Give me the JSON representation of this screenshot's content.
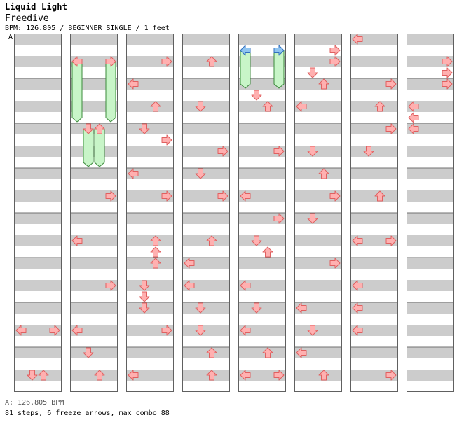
{
  "song": {
    "title": "Liquid Light",
    "artist": "Freedive",
    "info": "BPM: 126.805 / BEGINNER SINGLE / 1 feet",
    "marker": "A"
  },
  "footer": {
    "bpm_line": "A: 126.805 BPM",
    "stats_line": "81 steps, 6 freeze arrows, max combo 88"
  },
  "chart_data": {
    "type": "step-chart",
    "columns": 8,
    "rows_per_column": 32,
    "lanes": [
      "left",
      "down",
      "up",
      "right"
    ],
    "colors": {
      "note": "#ffb0b0",
      "note_stroke": "#e06060",
      "freeze": "#c8f5c8",
      "freeze_stroke": "#3a8a3a",
      "freeze_head": "#8fc4f0",
      "stripe": "#cccccc"
    },
    "notes": [
      {
        "c": 0,
        "r": 26,
        "l": 0
      },
      {
        "c": 0,
        "r": 26,
        "l": 3
      },
      {
        "c": 0,
        "r": 30,
        "l": 1
      },
      {
        "c": 0,
        "r": 30,
        "l": 2
      },
      {
        "c": 1,
        "r": 2,
        "l": 0
      },
      {
        "c": 1,
        "r": 2,
        "l": 3
      },
      {
        "c": 1,
        "r": 8,
        "l": 1
      },
      {
        "c": 1,
        "r": 8,
        "l": 2
      },
      {
        "c": 1,
        "r": 14,
        "l": 3
      },
      {
        "c": 1,
        "r": 18,
        "l": 0
      },
      {
        "c": 1,
        "r": 22,
        "l": 3
      },
      {
        "c": 1,
        "r": 26,
        "l": 0
      },
      {
        "c": 1,
        "r": 28,
        "l": 1
      },
      {
        "c": 1,
        "r": 30,
        "l": 2
      },
      {
        "c": 2,
        "r": 2,
        "l": 3
      },
      {
        "c": 2,
        "r": 4,
        "l": 0
      },
      {
        "c": 2,
        "r": 6,
        "l": 2
      },
      {
        "c": 2,
        "r": 8,
        "l": 1
      },
      {
        "c": 2,
        "r": 9,
        "l": 3
      },
      {
        "c": 2,
        "r": 12,
        "l": 0
      },
      {
        "c": 2,
        "r": 14,
        "l": 3
      },
      {
        "c": 2,
        "r": 18,
        "l": 2
      },
      {
        "c": 2,
        "r": 19,
        "l": 2
      },
      {
        "c": 2,
        "r": 20,
        "l": 2
      },
      {
        "c": 2,
        "r": 22,
        "l": 1
      },
      {
        "c": 2,
        "r": 23,
        "l": 1
      },
      {
        "c": 2,
        "r": 24,
        "l": 1
      },
      {
        "c": 2,
        "r": 26,
        "l": 3
      },
      {
        "c": 2,
        "r": 30,
        "l": 0
      },
      {
        "c": 3,
        "r": 2,
        "l": 2
      },
      {
        "c": 3,
        "r": 6,
        "l": 1
      },
      {
        "c": 3,
        "r": 10,
        "l": 3
      },
      {
        "c": 3,
        "r": 12,
        "l": 1
      },
      {
        "c": 3,
        "r": 14,
        "l": 3
      },
      {
        "c": 3,
        "r": 18,
        "l": 2
      },
      {
        "c": 3,
        "r": 20,
        "l": 0
      },
      {
        "c": 3,
        "r": 22,
        "l": 0
      },
      {
        "c": 3,
        "r": 24,
        "l": 1
      },
      {
        "c": 3,
        "r": 26,
        "l": 1
      },
      {
        "c": 3,
        "r": 28,
        "l": 2
      },
      {
        "c": 3,
        "r": 30,
        "l": 2
      },
      {
        "c": 4,
        "r": 1,
        "l": 0
      },
      {
        "c": 4,
        "r": 1,
        "l": 3
      },
      {
        "c": 4,
        "r": 5,
        "l": 1
      },
      {
        "c": 4,
        "r": 6,
        "l": 2
      },
      {
        "c": 4,
        "r": 10,
        "l": 3
      },
      {
        "c": 4,
        "r": 14,
        "l": 0
      },
      {
        "c": 4,
        "r": 16,
        "l": 3
      },
      {
        "c": 4,
        "r": 18,
        "l": 1
      },
      {
        "c": 4,
        "r": 19,
        "l": 2
      },
      {
        "c": 4,
        "r": 22,
        "l": 0
      },
      {
        "c": 4,
        "r": 24,
        "l": 1
      },
      {
        "c": 4,
        "r": 26,
        "l": 0
      },
      {
        "c": 4,
        "r": 28,
        "l": 2
      },
      {
        "c": 4,
        "r": 30,
        "l": 0
      },
      {
        "c": 4,
        "r": 30,
        "l": 3
      },
      {
        "c": 5,
        "r": 1,
        "l": 3
      },
      {
        "c": 5,
        "r": 2,
        "l": 3
      },
      {
        "c": 5,
        "r": 3,
        "l": 1
      },
      {
        "c": 5,
        "r": 4,
        "l": 2
      },
      {
        "c": 5,
        "r": 6,
        "l": 0
      },
      {
        "c": 5,
        "r": 10,
        "l": 1
      },
      {
        "c": 5,
        "r": 12,
        "l": 2
      },
      {
        "c": 5,
        "r": 14,
        "l": 3
      },
      {
        "c": 5,
        "r": 16,
        "l": 1
      },
      {
        "c": 5,
        "r": 20,
        "l": 3
      },
      {
        "c": 5,
        "r": 24,
        "l": 0
      },
      {
        "c": 5,
        "r": 26,
        "l": 1
      },
      {
        "c": 5,
        "r": 28,
        "l": 0
      },
      {
        "c": 5,
        "r": 30,
        "l": 2
      },
      {
        "c": 6,
        "r": 0,
        "l": 0
      },
      {
        "c": 6,
        "r": 4,
        "l": 3
      },
      {
        "c": 6,
        "r": 6,
        "l": 2
      },
      {
        "c": 6,
        "r": 8,
        "l": 3
      },
      {
        "c": 6,
        "r": 10,
        "l": 1
      },
      {
        "c": 6,
        "r": 14,
        "l": 2
      },
      {
        "c": 6,
        "r": 18,
        "l": 0
      },
      {
        "c": 6,
        "r": 18,
        "l": 3
      },
      {
        "c": 6,
        "r": 22,
        "l": 0
      },
      {
        "c": 6,
        "r": 24,
        "l": 0
      },
      {
        "c": 6,
        "r": 26,
        "l": 0
      },
      {
        "c": 6,
        "r": 30,
        "l": 3
      },
      {
        "c": 7,
        "r": 2,
        "l": 3
      },
      {
        "c": 7,
        "r": 3,
        "l": 3
      },
      {
        "c": 7,
        "r": 4,
        "l": 3
      },
      {
        "c": 7,
        "r": 6,
        "l": 0
      },
      {
        "c": 7,
        "r": 7,
        "l": 0
      },
      {
        "c": 7,
        "r": 8,
        "l": 0
      }
    ],
    "freezes": [
      {
        "c": 1,
        "l": 0,
        "start": 2,
        "end": 7
      },
      {
        "c": 1,
        "l": 3,
        "start": 2,
        "end": 7
      },
      {
        "c": 1,
        "l": 1,
        "start": 8,
        "end": 11
      },
      {
        "c": 1,
        "l": 2,
        "start": 8,
        "end": 11
      },
      {
        "c": 4,
        "l": 0,
        "start": 1,
        "end": 4
      },
      {
        "c": 4,
        "l": 3,
        "start": 1,
        "end": 4
      }
    ]
  }
}
